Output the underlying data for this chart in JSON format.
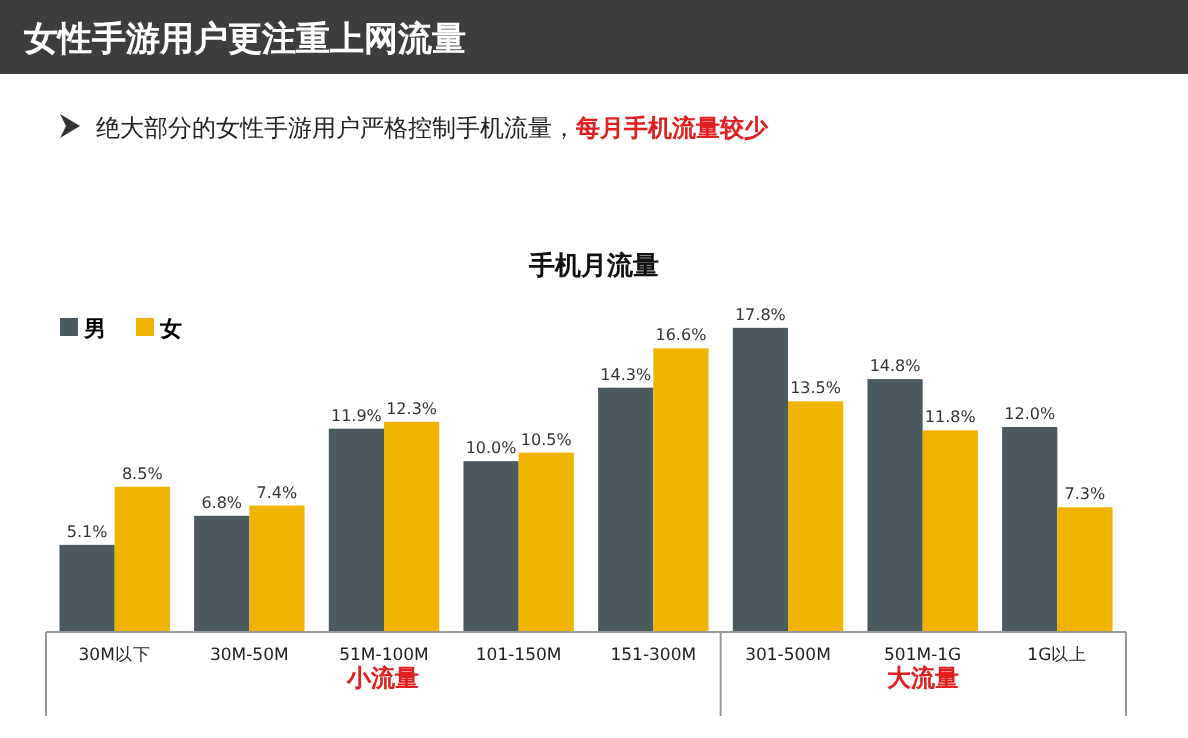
{
  "chart_data": {
    "type": "bar",
    "title": "女性手游用户更注重上网流量",
    "subtitle": "绝大部分的女性手游用户严格控制手机流量，",
    "xlabel": "手机月流量",
    "categories": [
      "30M以下",
      "30M-50M",
      "51M-100M",
      "101-150M",
      "151-300M",
      "301-500M",
      "501M-1G",
      "1G以上"
    ],
    "series": [
      {
        "name": "男",
        "color": "#4b5a5e",
        "values": [
          5.1,
          6.8,
          11.9,
          10.0,
          14.3,
          17.8,
          14.8,
          12.0
        ],
        "value_labels": [
          "5.1%",
          "6.8%",
          "11.9%",
          "10.0%",
          "14.3%",
          "17.8%",
          "14.8%",
          "12.0%"
        ]
      },
      {
        "name": "女",
        "color": "#f0b400",
        "values": [
          8.5,
          7.4,
          12.3,
          10.5,
          16.6,
          13.5,
          11.8,
          7.3
        ],
        "value_labels": [
          "8.5%",
          "7.4%",
          "12.3%",
          "10.5%",
          "16.6%",
          "13.5%",
          "11.8%",
          "7.3%"
        ]
      }
    ],
    "annotations": [
      "每月手机流量较少",
      "小流量",
      "大流量"
    ],
    "legend": "top left"
  }
}
